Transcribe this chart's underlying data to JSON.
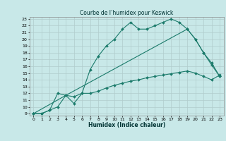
{
  "title": "Courbe de l’humidex pour Keswick",
  "xlabel": "Humidex (Indice chaleur)",
  "bg_color": "#c8e8e8",
  "line_color": "#1a7a6a",
  "grid_color": "#b0cccc",
  "xlim": [
    -0.5,
    23.5
  ],
  "ylim": [
    8.7,
    23.3
  ],
  "xticks": [
    0,
    1,
    2,
    3,
    4,
    5,
    6,
    7,
    8,
    9,
    10,
    11,
    12,
    13,
    14,
    15,
    16,
    17,
    18,
    19,
    20,
    21,
    22,
    23
  ],
  "yticks": [
    9,
    10,
    11,
    12,
    13,
    14,
    15,
    16,
    17,
    18,
    19,
    20,
    21,
    22,
    23
  ],
  "line1_x": [
    0,
    1,
    2,
    3,
    4,
    5,
    6,
    7,
    8,
    9,
    10,
    11,
    12,
    13,
    14,
    15,
    16,
    17,
    18,
    19,
    20,
    21,
    22,
    23
  ],
  "line1_y": [
    9,
    9,
    9.5,
    10,
    11.7,
    11.5,
    12,
    15.5,
    17.5,
    19,
    20,
    21.5,
    22.5,
    21.5,
    21.5,
    22,
    22.5,
    23,
    22.5,
    21.5,
    20,
    18,
    16.5,
    14.5
  ],
  "line2_x": [
    0,
    1,
    2,
    3,
    4,
    5,
    6,
    7,
    8,
    9,
    10,
    11,
    12,
    13,
    14,
    15,
    16,
    17,
    18,
    19,
    20,
    21,
    22,
    23
  ],
  "line2_y": [
    9,
    9,
    9.5,
    12,
    11.7,
    10.5,
    12.0,
    12.0,
    12.3,
    12.8,
    13.2,
    13.5,
    13.8,
    14.0,
    14.3,
    14.5,
    14.7,
    14.9,
    15.1,
    15.3,
    15.0,
    14.5,
    14.0,
    14.7
  ],
  "line3_x": [
    0,
    4,
    19,
    20,
    21,
    22,
    23
  ],
  "line3_y": [
    9,
    11.7,
    21.5,
    20,
    18,
    16.2,
    14.5
  ]
}
